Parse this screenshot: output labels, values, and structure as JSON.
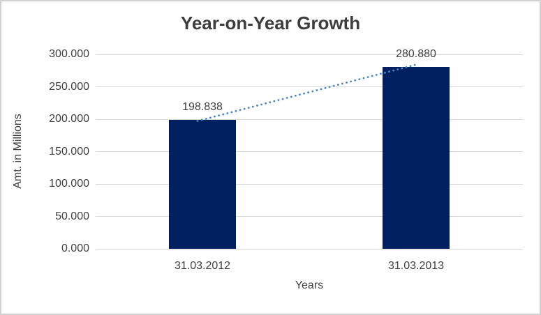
{
  "chart_data": {
    "type": "bar",
    "title": "Year-on-Year Growth",
    "categories": [
      "31.03.2012",
      "31.03.2013"
    ],
    "values": [
      198.838,
      280.88
    ],
    "value_labels": [
      "198.838",
      "280.880"
    ],
    "xlabel": "Years",
    "ylabel": "Amt. in Millions",
    "ylim": [
      0,
      300
    ],
    "ytick_labels": [
      "0.000",
      "50.000",
      "100.000",
      "150.000",
      "200.000",
      "250.000",
      "300.000"
    ],
    "grid": true,
    "legend": "none",
    "series_name": "Amt. in Millions",
    "trendline": {
      "style": "dotted",
      "shape": "linear"
    }
  },
  "colors": {
    "bar": "#002060",
    "trendline": "#4a86c8",
    "text": "#404040",
    "title_text": "#3d3d3d",
    "gridline": "#d9d9d9",
    "axis_line": "#d4d4d4",
    "window_border": "#d0d0d0",
    "background": "#ffffff"
  }
}
